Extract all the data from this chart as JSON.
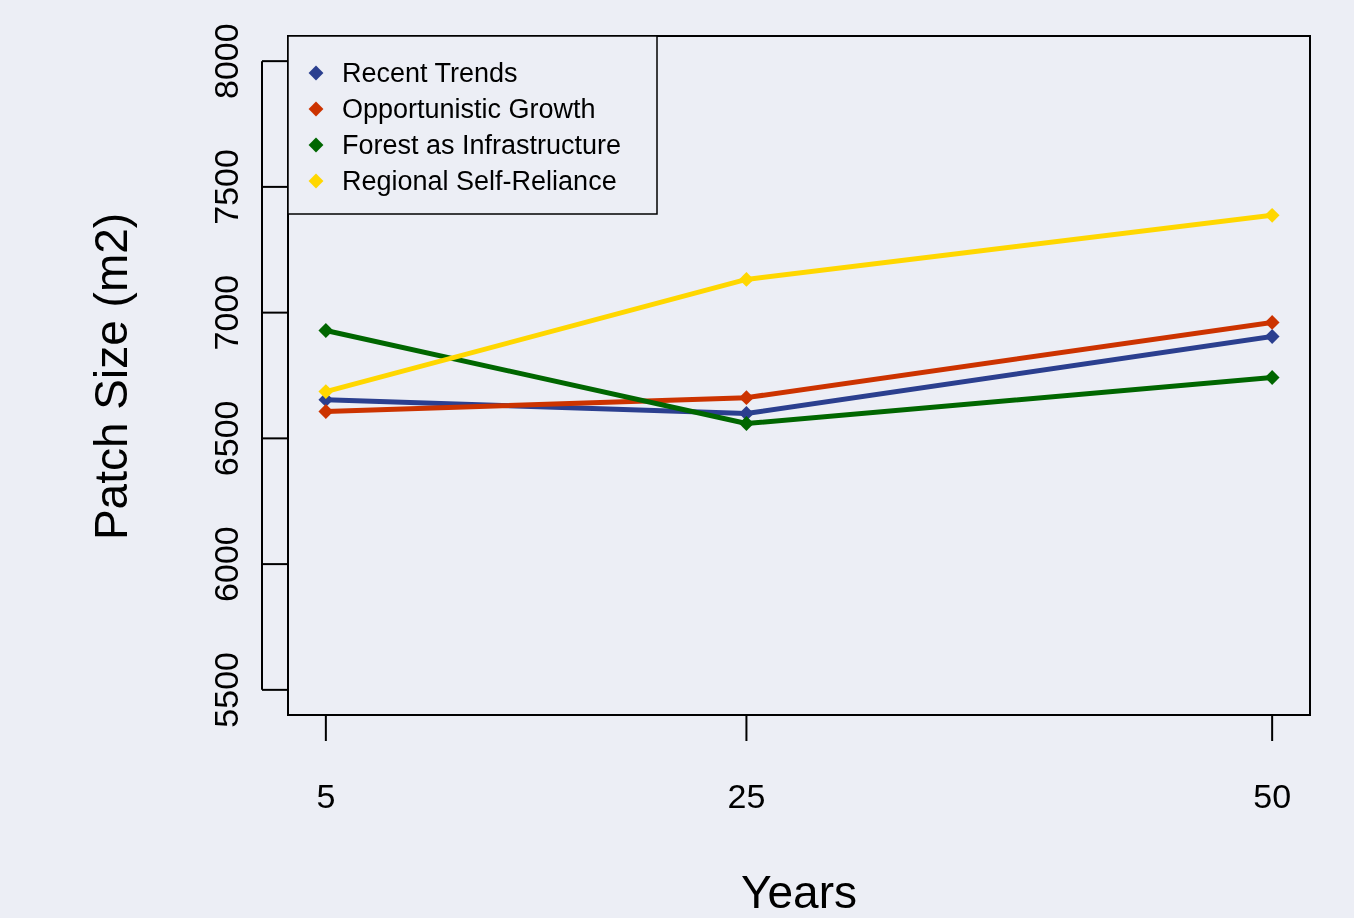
{
  "chart_data": {
    "type": "line",
    "xlabel": "Years",
    "ylabel": "Patch Size (m2)",
    "x": [
      5,
      25,
      50
    ],
    "xlim": [
      3.2,
      51.8
    ],
    "xticks": [
      5,
      25,
      50
    ],
    "ylim": [
      5400,
      8100
    ],
    "yticks": [
      5500,
      6000,
      6500,
      7000,
      7500,
      8000
    ],
    "grid": false,
    "legend": "top left",
    "marker": "diamond",
    "line_style": "solid",
    "series": [
      {
        "name": "Recent Trends",
        "color": "#2b3f8f",
        "values": [
          6654,
          6599,
          6905
        ]
      },
      {
        "name": "Opportunistic Growth",
        "color": "#cc3300",
        "values": [
          6607,
          6662,
          6961
        ]
      },
      {
        "name": "Forest as Infrastructure",
        "color": "#006600",
        "values": [
          6929,
          6559,
          6742
        ]
      },
      {
        "name": "Regional Self-Reliance",
        "color": "#ffd700",
        "values": [
          6686,
          7132,
          7387
        ]
      }
    ]
  }
}
